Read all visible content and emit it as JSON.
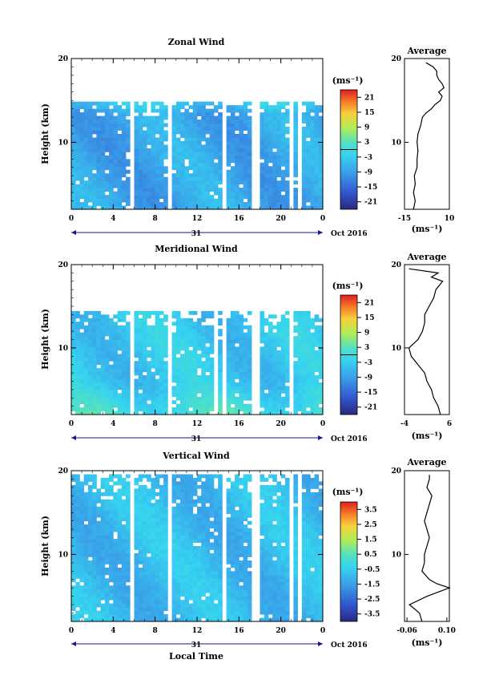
{
  "figure": {
    "xlabel": "Local Time",
    "day_label": "31",
    "date_label": "Oct 2016"
  },
  "chart_data": [
    {
      "type": "heatmap",
      "title": "Zonal Wind",
      "ylabel": "Height (km)",
      "xlabel": "Local Time",
      "x_ticks": [
        "0",
        "4",
        "8",
        "12",
        "16",
        "20",
        "0"
      ],
      "xlim": [
        0,
        24
      ],
      "ylim": [
        2,
        20
      ],
      "y_ticks": [
        "10",
        "20"
      ],
      "colorbar": {
        "unit": "(ms⁻¹)",
        "ticks": [
          "21",
          "15",
          "9",
          "3",
          "-3",
          "-9",
          "-15",
          "-21"
        ],
        "range": [
          -24,
          24
        ]
      },
      "base_value": -8,
      "data_gaps_hours": [
        5.8,
        9.6,
        14.6,
        17.6,
        21.1,
        21.8
      ],
      "top_km": 15,
      "profile": {
        "title": "Average",
        "xlabel": "(ms⁻¹)",
        "x_ticks": [
          "-15",
          "10"
        ],
        "xlim": [
          -15,
          10
        ],
        "heights_km": [
          2,
          3,
          4,
          5,
          6,
          7,
          8,
          9,
          10,
          11,
          12,
          13,
          13.5,
          14,
          14.5,
          15,
          15.5,
          16,
          16.5,
          17,
          17.5,
          18,
          18.5,
          19,
          19.5
        ],
        "values": [
          -10,
          -9,
          -10,
          -9,
          -9.5,
          -8,
          -8,
          -7.5,
          -8,
          -7.5,
          -6,
          -5,
          -3,
          0,
          2,
          5,
          6,
          4,
          7,
          6,
          4,
          3,
          3,
          1,
          -3
        ]
      }
    },
    {
      "type": "heatmap",
      "title": "Meridional Wind",
      "ylabel": "Height (km)",
      "xlabel": "Local Time",
      "x_ticks": [
        "0",
        "4",
        "8",
        "12",
        "16",
        "20",
        "0"
      ],
      "xlim": [
        0,
        24
      ],
      "ylim": [
        2,
        20
      ],
      "y_ticks": [
        "10",
        "20"
      ],
      "colorbar": {
        "unit": "(ms⁻¹)",
        "ticks": [
          "21",
          "15",
          "9",
          "3",
          "-3",
          "-9",
          "-15",
          "-21"
        ],
        "range": [
          -24,
          24
        ]
      },
      "base_value": -4,
      "data_gaps_hours": [
        5.8,
        9.6,
        13.7,
        14.6,
        17.6,
        21.1
      ],
      "top_km": 14.5,
      "profile": {
        "title": "Average",
        "xlabel": "(ms⁻¹)",
        "x_ticks": [
          "-4",
          "6"
        ],
        "xlim": [
          -4,
          6
        ],
        "heights_km": [
          2,
          3,
          4,
          5,
          6,
          7,
          8,
          9,
          10,
          11,
          12,
          13,
          14,
          15,
          16,
          17,
          18,
          18.5,
          19,
          19.5
        ],
        "values": [
          4,
          3.5,
          2.5,
          2,
          1,
          0.5,
          -1,
          -2.5,
          -3,
          -1,
          0,
          0.5,
          0.5,
          1.5,
          2.5,
          3,
          4.5,
          2,
          3.5,
          -3
        ]
      }
    },
    {
      "type": "heatmap",
      "title": "Vertical Wind",
      "ylabel": "Height (km)",
      "xlabel": "Local Time",
      "x_ticks": [
        "0",
        "4",
        "8",
        "12",
        "16",
        "20",
        "0"
      ],
      "xlim": [
        0,
        24
      ],
      "ylim": [
        2,
        20
      ],
      "y_ticks": [
        "10",
        "20"
      ],
      "colorbar": {
        "unit": "(ms⁻¹)",
        "ticks": [
          "3.5",
          "2.5",
          "1.5",
          "0.5",
          "-0.5",
          "-1.5",
          "-2.5",
          "-3.5"
        ],
        "range": [
          -4,
          4
        ]
      },
      "base_value": -0.9,
      "data_gaps_hours": [
        5.8,
        9.6,
        14.6,
        17.6,
        21.1,
        21.8
      ],
      "top_km": 19.5,
      "profile": {
        "title": "Average",
        "xlabel": "(ms⁻¹)",
        "x_ticks": [
          "-0.06",
          "0.10"
        ],
        "xlim": [
          -0.07,
          0.11
        ],
        "heights_km": [
          2,
          3,
          4,
          5,
          6,
          6.5,
          7,
          8,
          9,
          10,
          11,
          12,
          13,
          14,
          15,
          16,
          17,
          18,
          19,
          19.5
        ],
        "values": [
          0.0,
          -0.01,
          -0.05,
          0.02,
          0.11,
          0.06,
          0.03,
          0.0,
          0.01,
          0.01,
          0.02,
          0.03,
          0.02,
          0.01,
          0.02,
          0.03,
          0.04,
          0.02,
          0.03,
          0.03
        ]
      }
    }
  ]
}
